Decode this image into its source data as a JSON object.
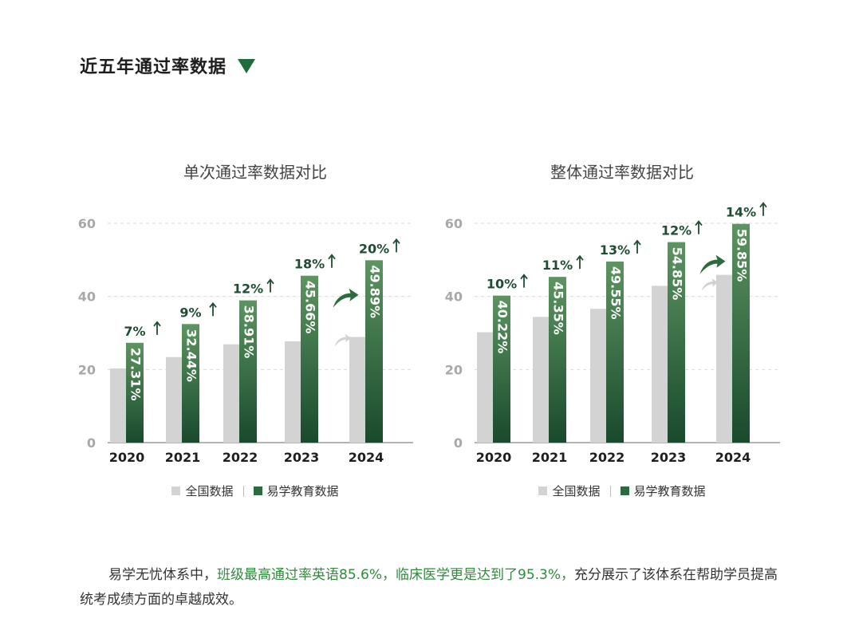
{
  "header": {
    "title": "近五年通过率数据"
  },
  "colors": {
    "national": "#d3d3d3",
    "yixue": "#2b6b3d",
    "yixue_light": "#5d9461",
    "yixue_dark": "#184a2c",
    "label": "#1f4d34",
    "arrow_light": "#d2d2d2",
    "highlight": "#2f8a3c"
  },
  "icons": {
    "header": "down-triangle-icon",
    "increase": "up-arrow-icon",
    "trend": "curved-up-arrow-icon"
  },
  "legend": {
    "national": "全国数据",
    "yixue": "易学教育数据"
  },
  "charts": [
    {
      "title": "单次通过率数据对比"
    },
    {
      "title": "整体通过率数据对比"
    }
  ],
  "chart_data": [
    {
      "type": "bar",
      "title": "单次通过率数据对比",
      "categories": [
        "2020",
        "2021",
        "2022",
        "2023",
        "2024"
      ],
      "series": [
        {
          "name": "全国数据",
          "values": [
            20.3,
            23.4,
            26.9,
            27.7,
            28.9
          ]
        },
        {
          "name": "易学教育数据",
          "values": [
            27.31,
            32.44,
            38.91,
            45.66,
            49.89
          ],
          "labels": [
            "27.31%",
            "32.44%",
            "38.91%",
            "45.66%",
            "49.89%"
          ]
        }
      ],
      "increase_labels": [
        "7%",
        "9%",
        "12%",
        "18%",
        "20%"
      ],
      "yticks": [
        0,
        20,
        40,
        60
      ],
      "ylim": [
        0,
        60
      ],
      "grid": true,
      "legend_position": "bottom"
    },
    {
      "type": "bar",
      "title": "整体通过率数据对比",
      "categories": [
        "2020",
        "2021",
        "2022",
        "2023",
        "2024"
      ],
      "series": [
        {
          "name": "全国数据",
          "values": [
            30.2,
            34.4,
            36.6,
            42.9,
            45.9
          ]
        },
        {
          "name": "易学教育数据",
          "values": [
            40.22,
            45.35,
            49.55,
            54.85,
            59.85
          ],
          "labels": [
            "40.22%",
            "45.35%",
            "49.55%",
            "54.85%",
            "59.85%"
          ]
        }
      ],
      "increase_labels": [
        "10%",
        "11%",
        "13%",
        "12%",
        "14%"
      ],
      "yticks": [
        0,
        20,
        40,
        60
      ],
      "ylim": [
        0,
        60
      ],
      "grid": true,
      "legend_position": "bottom"
    }
  ],
  "summary": {
    "part1": "易学无忧体系中，",
    "part2": "班级最高通过率英语85.6%，临床医学更是达到了95.3%，",
    "part3": "充分展示了该体系在帮助学员提高统考成绩方面的卓越成效。"
  }
}
